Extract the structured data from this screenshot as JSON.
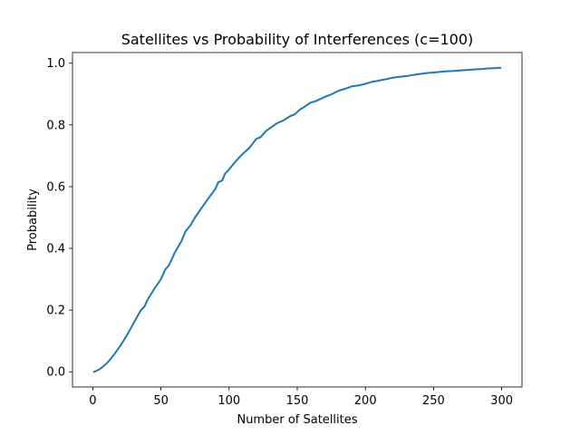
{
  "chart_data": {
    "type": "line",
    "title": "Satellites vs Probability of Interferences (c=100)",
    "xlabel": "Number of Satellites",
    "ylabel": "Probability",
    "xlim": [
      -14.9,
      314.9
    ],
    "ylim": [
      -0.0492,
      1.0345
    ],
    "xticks": [
      0,
      50,
      100,
      150,
      200,
      250,
      300
    ],
    "yticks": [
      0.0,
      0.2,
      0.4,
      0.6,
      0.8,
      1.0
    ],
    "xtick_labels": [
      "0",
      "50",
      "100",
      "150",
      "200",
      "250",
      "300"
    ],
    "ytick_labels": [
      "0.0",
      "0.2",
      "0.4",
      "0.6",
      "0.8",
      "1.0"
    ],
    "grid": false,
    "series_color": "#1f77b4",
    "series": [
      {
        "x": [
          1,
          5,
          10,
          15,
          20,
          25,
          30,
          35,
          38,
          40,
          45,
          50,
          53,
          56,
          60,
          65,
          68,
          72,
          75,
          80,
          85,
          90,
          92,
          95,
          97,
          100,
          105,
          110,
          115,
          120,
          123,
          127,
          130,
          135,
          140,
          145,
          148,
          152,
          155,
          160,
          163,
          168,
          172,
          175,
          180,
          185,
          190,
          195,
          200,
          205,
          208,
          215,
          220,
          225,
          230,
          235,
          240,
          245,
          250,
          255,
          260,
          265,
          270,
          275,
          280,
          285,
          290,
          295,
          299
        ],
        "y": [
          0.0,
          0.008,
          0.026,
          0.052,
          0.083,
          0.118,
          0.158,
          0.198,
          0.212,
          0.232,
          0.268,
          0.3,
          0.33,
          0.346,
          0.385,
          0.423,
          0.455,
          0.477,
          0.5,
          0.532,
          0.563,
          0.593,
          0.614,
          0.62,
          0.642,
          0.656,
          0.683,
          0.706,
          0.726,
          0.755,
          0.76,
          0.78,
          0.79,
          0.805,
          0.815,
          0.829,
          0.834,
          0.85,
          0.858,
          0.873,
          0.876,
          0.886,
          0.894,
          0.899,
          0.91,
          0.917,
          0.925,
          0.928,
          0.933,
          0.94,
          0.942,
          0.948,
          0.953,
          0.956,
          0.958,
          0.962,
          0.965,
          0.968,
          0.97,
          0.972,
          0.974,
          0.975,
          0.977,
          0.978,
          0.98,
          0.981,
          0.983,
          0.984,
          0.985
        ]
      }
    ]
  }
}
